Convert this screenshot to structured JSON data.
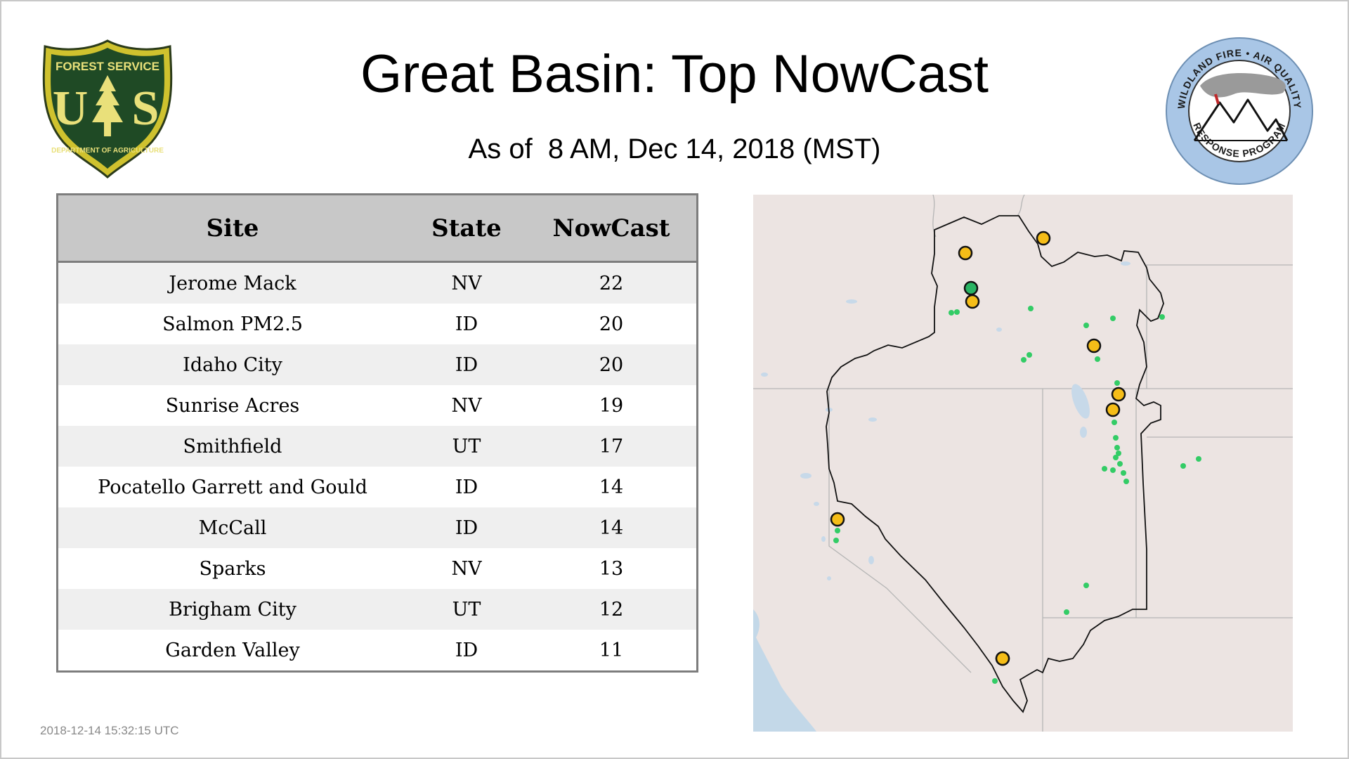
{
  "header": {
    "title": "Great Basin: Top NowCast",
    "subtitle": "As of  8 AM, Dec 14, 2018 (MST)"
  },
  "logos": {
    "left": {
      "icon": "forest-service-shield",
      "text_top": "FOREST SERVICE",
      "letters": "US",
      "text_bottom": "DEPARTMENT OF AGRICULTURE"
    },
    "right": {
      "icon": "wildland-fire-air-quality-seal",
      "text_top": "WILDLAND FIRE • AIR QUALITY",
      "text_bottom": "RESPONSE PROGRAM"
    }
  },
  "table": {
    "columns": [
      "Site",
      "State",
      "NowCast"
    ],
    "rows": [
      {
        "site": "Jerome Mack",
        "state": "NV",
        "nowcast": "22"
      },
      {
        "site": "Salmon PM2.5",
        "state": "ID",
        "nowcast": "20"
      },
      {
        "site": "Idaho City",
        "state": "ID",
        "nowcast": "20"
      },
      {
        "site": "Sunrise Acres",
        "state": "NV",
        "nowcast": "19"
      },
      {
        "site": "Smithfield",
        "state": "UT",
        "nowcast": "17"
      },
      {
        "site": "Pocatello Garrett and Gould",
        "state": "ID",
        "nowcast": "14"
      },
      {
        "site": "McCall",
        "state": "ID",
        "nowcast": "14"
      },
      {
        "site": "Sparks",
        "state": "NV",
        "nowcast": "13"
      },
      {
        "site": "Brigham City",
        "state": "UT",
        "nowcast": "12"
      },
      {
        "site": "Garden Valley",
        "state": "ID",
        "nowcast": "11"
      }
    ]
  },
  "map": {
    "colors": {
      "land": "#ece4e2",
      "ocean": "#c3d8e8",
      "lakes": "#c7d9e9",
      "state_lines": "#b5b5b5",
      "region_outline": "#111111",
      "marker_moderate": "#f5bd18",
      "marker_good": "#29b463",
      "marker_good_small": "#33cc66"
    },
    "legend_meaning": "yellow = moderate, green = good"
  },
  "footer": {
    "timestamp": "2018-12-14 15:32:15 UTC"
  }
}
